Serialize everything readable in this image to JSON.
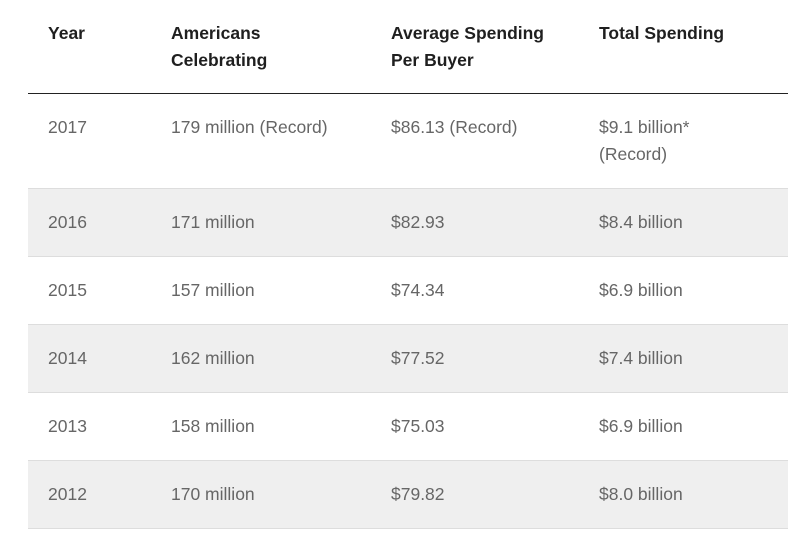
{
  "table": {
    "headers": [
      [
        "Year"
      ],
      [
        "Americans",
        "Celebrating"
      ],
      [
        "Average Spending",
        "Per Buyer"
      ],
      [
        "Total Spending"
      ]
    ],
    "rows": [
      {
        "year": "2017",
        "americans": "179 million (Record)",
        "avg": "$86.13 (Record)",
        "total_line1": "$9.1 billion*",
        "total_line2": "(Record)"
      },
      {
        "year": "2016",
        "americans": "171 million",
        "avg": "$82.93",
        "total_line1": "$8.4 billion"
      },
      {
        "year": "2015",
        "americans": "157 million",
        "avg": "$74.34",
        "total_line1": "$6.9 billion"
      },
      {
        "year": "2014",
        "americans": "162 million",
        "avg": "$77.52",
        "total_line1": "$7.4 billion"
      },
      {
        "year": "2013",
        "americans": "158 million",
        "avg": "$75.03",
        "total_line1": "$6.9 billion"
      },
      {
        "year": "2012",
        "americans": "170 million",
        "avg": "$79.82",
        "total_line1": "$8.0 billion"
      }
    ]
  }
}
